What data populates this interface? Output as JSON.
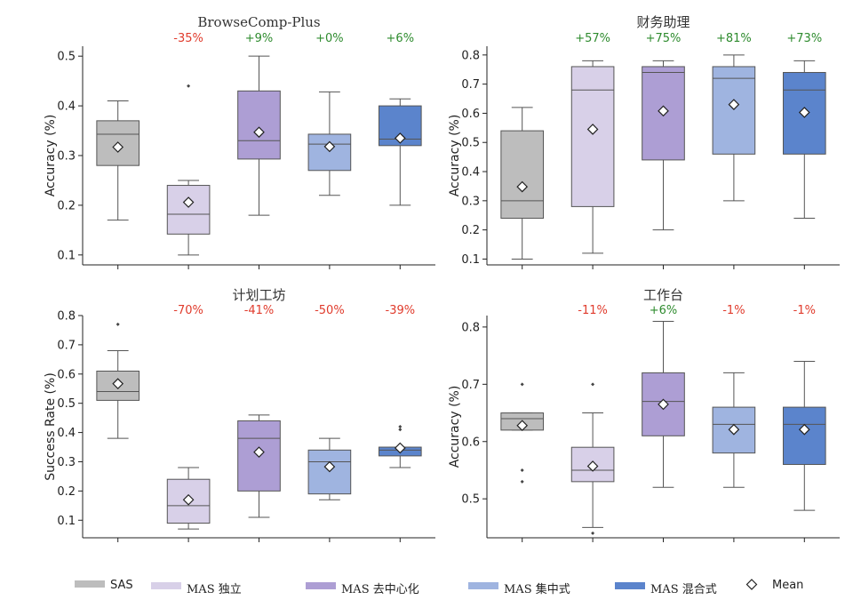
{
  "colors": {
    "SAS": "#bdbdbd",
    "MAS 独立": "#d8d0e8",
    "MAS 去中心化": "#ad9ed4",
    "MAS 集中式": "#9fb4e0",
    "MAS 混合式": "#5b84cc",
    "positive": "#2e8b2e",
    "negative": "#e03b2c"
  },
  "legend": {
    "items": [
      "SAS",
      "MAS 独立",
      "MAS 去中心化",
      "MAS 集中式",
      "MAS 混合式"
    ],
    "mean_label": "Mean"
  },
  "chart_data": [
    {
      "type": "box",
      "title": "BrowseComp-Plus",
      "ylabel": "Accuracy (%)",
      "ylim": [
        0.08,
        0.52
      ],
      "yticks": [
        "0.1",
        "0.2",
        "0.3",
        "0.4",
        "0.5"
      ],
      "categories": [
        "SAS",
        "MAS 独立",
        "MAS 去中心化",
        "MAS 集中式",
        "MAS 混合式"
      ],
      "deltas": [
        "",
        "-35%",
        "+9%",
        "+0%",
        "+6%"
      ],
      "boxes": [
        {
          "whislo": 0.17,
          "q1": 0.28,
          "med": 0.343,
          "q3": 0.37,
          "whishi": 0.41,
          "mean": 0.317,
          "fliers": []
        },
        {
          "whislo": 0.1,
          "q1": 0.142,
          "med": 0.182,
          "q3": 0.24,
          "whishi": 0.25,
          "mean": 0.206,
          "fliers": [
            0.44
          ]
        },
        {
          "whislo": 0.18,
          "q1": 0.293,
          "med": 0.33,
          "q3": 0.43,
          "whishi": 0.5,
          "mean": 0.347,
          "fliers": []
        },
        {
          "whislo": 0.22,
          "q1": 0.27,
          "med": 0.323,
          "q3": 0.343,
          "whishi": 0.428,
          "mean": 0.318,
          "fliers": []
        },
        {
          "whislo": 0.2,
          "q1": 0.32,
          "med": 0.333,
          "q3": 0.4,
          "whishi": 0.414,
          "mean": 0.335,
          "fliers": []
        }
      ]
    },
    {
      "type": "box",
      "title": "财务助理",
      "ylabel": "Accuracy (%)",
      "ylim": [
        0.08,
        0.83
      ],
      "yticks": [
        "0.1",
        "0.2",
        "0.3",
        "0.4",
        "0.5",
        "0.6",
        "0.7",
        "0.8"
      ],
      "categories": [
        "SAS",
        "MAS 独立",
        "MAS 去中心化",
        "MAS 集中式",
        "MAS 混合式"
      ],
      "deltas": [
        "",
        "+57%",
        "+75%",
        "+81%",
        "+73%"
      ],
      "boxes": [
        {
          "whislo": 0.1,
          "q1": 0.24,
          "med": 0.3,
          "q3": 0.54,
          "whishi": 0.62,
          "mean": 0.348,
          "fliers": []
        },
        {
          "whislo": 0.12,
          "q1": 0.28,
          "med": 0.68,
          "q3": 0.76,
          "whishi": 0.78,
          "mean": 0.545,
          "fliers": []
        },
        {
          "whislo": 0.2,
          "q1": 0.44,
          "med": 0.74,
          "q3": 0.76,
          "whishi": 0.78,
          "mean": 0.608,
          "fliers": []
        },
        {
          "whislo": 0.3,
          "q1": 0.46,
          "med": 0.72,
          "q3": 0.76,
          "whishi": 0.8,
          "mean": 0.63,
          "fliers": []
        },
        {
          "whislo": 0.24,
          "q1": 0.46,
          "med": 0.68,
          "q3": 0.74,
          "whishi": 0.78,
          "mean": 0.603,
          "fliers": []
        }
      ]
    },
    {
      "type": "box",
      "title": "计划工坊",
      "ylabel": "Success Rate (%)",
      "ylim": [
        0.04,
        0.8
      ],
      "yticks": [
        "0.1",
        "0.2",
        "0.3",
        "0.4",
        "0.5",
        "0.6",
        "0.7",
        "0.8"
      ],
      "categories": [
        "SAS",
        "MAS 独立",
        "MAS 去中心化",
        "MAS 集中式",
        "MAS 混合式"
      ],
      "deltas": [
        "",
        "-70%",
        "-41%",
        "-50%",
        "-39%"
      ],
      "boxes": [
        {
          "whislo": 0.38,
          "q1": 0.51,
          "med": 0.54,
          "q3": 0.61,
          "whishi": 0.68,
          "mean": 0.567,
          "fliers": [
            0.77
          ]
        },
        {
          "whislo": 0.07,
          "q1": 0.09,
          "med": 0.15,
          "q3": 0.24,
          "whishi": 0.28,
          "mean": 0.17,
          "fliers": []
        },
        {
          "whislo": 0.11,
          "q1": 0.2,
          "med": 0.38,
          "q3": 0.44,
          "whishi": 0.46,
          "mean": 0.333,
          "fliers": []
        },
        {
          "whislo": 0.17,
          "q1": 0.19,
          "med": 0.3,
          "q3": 0.34,
          "whishi": 0.38,
          "mean": 0.283,
          "fliers": []
        },
        {
          "whislo": 0.28,
          "q1": 0.32,
          "med": 0.34,
          "q3": 0.35,
          "whishi": 0.35,
          "mean": 0.347,
          "fliers": [
            0.41,
            0.42
          ]
        }
      ]
    },
    {
      "type": "box",
      "title": "工作台",
      "ylabel": "Accuracy (%)",
      "ylim": [
        0.432,
        0.82
      ],
      "yticks": [
        "0.5",
        "0.6",
        "0.7",
        "0.8"
      ],
      "categories": [
        "SAS",
        "MAS 独立",
        "MAS 去中心化",
        "MAS 集中式",
        "MAS 混合式"
      ],
      "deltas": [
        "",
        "-11%",
        "+6%",
        "-1%",
        "-1%"
      ],
      "boxes": [
        {
          "whislo": 0.62,
          "q1": 0.62,
          "med": 0.64,
          "q3": 0.65,
          "whishi": 0.65,
          "mean": 0.628,
          "fliers": [
            0.7,
            0.55,
            0.53
          ]
        },
        {
          "whislo": 0.45,
          "q1": 0.53,
          "med": 0.55,
          "q3": 0.59,
          "whishi": 0.65,
          "mean": 0.557,
          "fliers": [
            0.7,
            0.44
          ]
        },
        {
          "whislo": 0.52,
          "q1": 0.61,
          "med": 0.67,
          "q3": 0.72,
          "whishi": 0.81,
          "mean": 0.665,
          "fliers": []
        },
        {
          "whislo": 0.52,
          "q1": 0.58,
          "med": 0.63,
          "q3": 0.66,
          "whishi": 0.72,
          "mean": 0.621,
          "fliers": []
        },
        {
          "whislo": 0.48,
          "q1": 0.56,
          "med": 0.63,
          "q3": 0.66,
          "whishi": 0.74,
          "mean": 0.621,
          "fliers": []
        }
      ]
    }
  ]
}
